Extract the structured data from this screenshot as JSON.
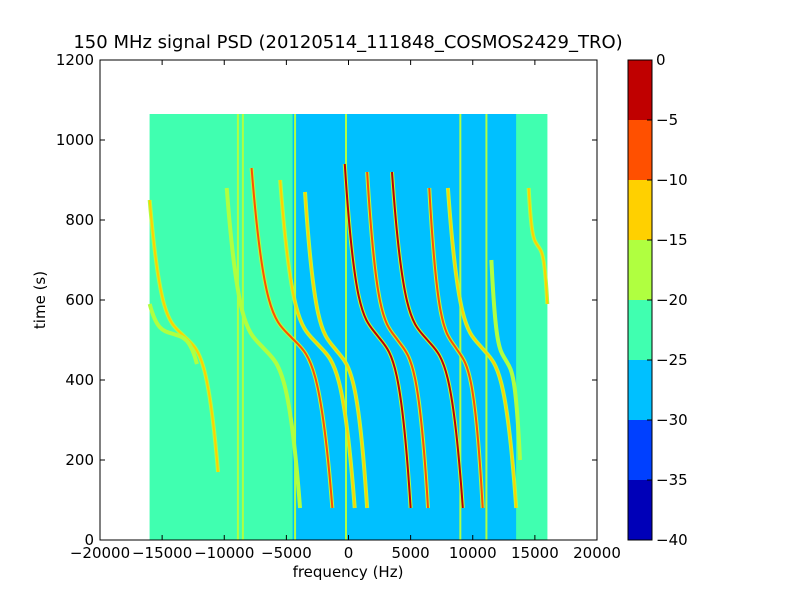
{
  "chart_data": {
    "type": "heatmap",
    "title": "150 MHz signal PSD (20120514_111848_COSMOS2429_TRO)",
    "xlabel": "frequency (Hz)",
    "ylabel": "time (s)",
    "xlim": [
      -20000,
      20000
    ],
    "ylim": [
      0,
      1200
    ],
    "xticks": [
      -20000,
      -15000,
      -10000,
      -5000,
      0,
      5000,
      10000,
      15000,
      20000
    ],
    "yticks": [
      0,
      200,
      400,
      600,
      800,
      1000,
      1200
    ],
    "data_extent": {
      "x": [
        -16000,
        16000
      ],
      "y": [
        0,
        1065
      ]
    },
    "background_level": -25,
    "regions": [
      {
        "x": [
          -16000,
          -4500
        ],
        "y": [
          0,
          1065
        ],
        "level": -22.5
      },
      {
        "x": [
          -4500,
          0
        ],
        "y": [
          0,
          1065
        ],
        "level": -27.5
      },
      {
        "x": [
          0,
          13500
        ],
        "y": [
          0,
          1065
        ],
        "level": -27.5
      },
      {
        "x": [
          13500,
          16000
        ],
        "y": [
          0,
          1065
        ],
        "level": -22.5
      }
    ],
    "vertical_lines": [
      {
        "x": -8900,
        "level": -17.5
      },
      {
        "x": -8500,
        "level": -17.5
      },
      {
        "x": -4300,
        "level": -20
      },
      {
        "x": -200,
        "level": -20
      },
      {
        "x": 9000,
        "level": -20
      },
      {
        "x": 11100,
        "level": -20
      }
    ],
    "traces": [
      {
        "start": [
          -16000,
          850
        ],
        "end": [
          -10500,
          170
        ],
        "level": -12.5
      },
      {
        "start": [
          -16000,
          590
        ],
        "end": [
          -12200,
          440
        ],
        "level": -17.5
      },
      {
        "start": [
          -9800,
          880
        ],
        "end": [
          -3900,
          80
        ],
        "level": -17.5
      },
      {
        "start": [
          -7800,
          930
        ],
        "end": [
          -1300,
          80
        ],
        "level": -7.5
      },
      {
        "start": [
          -5500,
          900
        ],
        "end": [
          500,
          80
        ],
        "level": -12.5
      },
      {
        "start": [
          -3500,
          870
        ],
        "end": [
          1500,
          80
        ],
        "level": -15
      },
      {
        "start": [
          -300,
          940
        ],
        "end": [
          5000,
          80
        ],
        "level": -2.5
      },
      {
        "start": [
          1500,
          920
        ],
        "end": [
          6400,
          80
        ],
        "level": -10
      },
      {
        "start": [
          3500,
          920
        ],
        "end": [
          9200,
          80
        ],
        "level": -5
      },
      {
        "start": [
          6500,
          880
        ],
        "end": [
          10800,
          80
        ],
        "level": -7.5
      },
      {
        "start": [
          8000,
          880
        ],
        "end": [
          13500,
          80
        ],
        "level": -12.5
      },
      {
        "start": [
          11500,
          700
        ],
        "end": [
          13800,
          200
        ],
        "level": -17.5
      },
      {
        "start": [
          14500,
          880
        ],
        "end": [
          16000,
          590
        ],
        "level": -12.5
      }
    ],
    "colorbar": {
      "ticks": [
        0,
        -5,
        -10,
        -15,
        -20,
        -25,
        -30,
        -35,
        -40
      ],
      "levels": [
        -40,
        -35,
        -30,
        -25,
        -20,
        -15,
        -10,
        -5,
        0
      ],
      "colors": [
        "#0000b8",
        "#0040ff",
        "#00c0ff",
        "#40ffb0",
        "#b0ff40",
        "#ffd000",
        "#ff5000",
        "#c00000"
      ]
    }
  }
}
